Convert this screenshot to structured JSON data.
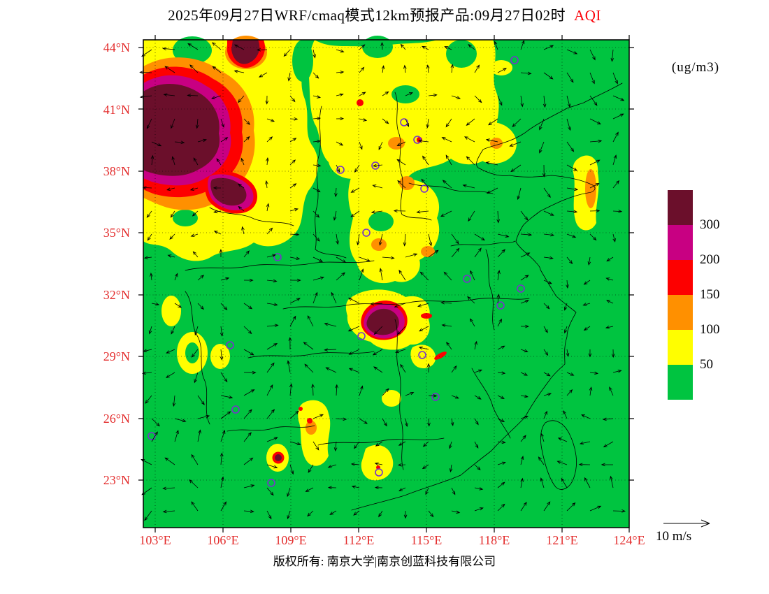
{
  "header": {
    "title_main": "2025年09月27日WRF/cmaq模式12km预报产品:09月27日02时",
    "title_highlight": "AQI"
  },
  "units_label": "(ug/m3)",
  "axes": {
    "lat_ticks": [
      "44°N",
      "41°N",
      "38°N",
      "35°N",
      "32°N",
      "29°N",
      "26°N",
      "23°N"
    ],
    "lon_ticks": [
      "103°E",
      "106°E",
      "109°E",
      "112°E",
      "115°E",
      "118°E",
      "121°E",
      "124°E"
    ]
  },
  "legend": {
    "tick_labels": [
      "300",
      "200",
      "150",
      "100",
      "50"
    ],
    "colors": [
      "#6b0f2b",
      "#c80082",
      "#fd0000",
      "#ff9000",
      "#fffe00",
      "#00c440"
    ]
  },
  "wind_scale": {
    "label": "10 m/s"
  },
  "footer": {
    "copyright": "版权所有: 南京大学|南京创蓝科技有限公司"
  },
  "chart_data": {
    "type": "heatmap",
    "title": "2025年09月27日WRF/cmaq模式12km预报产品:09月27日02时 AQI",
    "variable": "AQI",
    "units": "ug/m3",
    "x_axis": {
      "label": "longitude",
      "ticks": [
        "103°E",
        "106°E",
        "109°E",
        "112°E",
        "115°E",
        "118°E",
        "121°E",
        "124°E"
      ],
      "range_deg": [
        102.5,
        124
      ]
    },
    "y_axis": {
      "label": "latitude",
      "ticks": [
        "44°N",
        "41°N",
        "38°N",
        "35°N",
        "32°N",
        "29°N",
        "26°N",
        "23°N"
      ],
      "range_deg": [
        21.7,
        44.4
      ]
    },
    "color_bins": [
      {
        "range": "<50",
        "color": "#00c440"
      },
      {
        "range": "50-100",
        "color": "#fffe00"
      },
      {
        "range": "100-150",
        "color": "#ff9000"
      },
      {
        "range": "150-200",
        "color": "#fd0000"
      },
      {
        "range": "200-300",
        "color": "#c80082"
      },
      {
        "range": ">300",
        "color": "#6b0f2b"
      }
    ],
    "legend_ticks": [
      300,
      200,
      150,
      100,
      50
    ],
    "features": [
      {
        "area": "northwest corner (approx 103-108°E, 37-42.5°N)",
        "aqi": ">300 core with 150-300 ring and 50-150 fringe"
      },
      {
        "area": "north China / Huang-Huai plain (approx 106-119°E, 33-42°N)",
        "aqi": "50-100 widespread with scattered 100-200 spots"
      },
      {
        "area": "central hotspot band (approx 112-113.5°E, 30-31.5°N)",
        "aqi": "150 to >300 narrow elongated band"
      },
      {
        "area": "scattered southern patches (approx 108-116°E, 22-28°N)",
        "aqi": "50-100 with isolated 150->300 dots"
      },
      {
        "area": "east coastal strip (approx 122°E, 35-37.5°N)",
        "aqi": "50-150"
      },
      {
        "area": "remainder of domain including sea",
        "aqi": "<50"
      }
    ],
    "overlays": [
      "wind vectors, reference arrow 10 m/s",
      "province boundaries and coastline",
      "city markers (purple circles)",
      "dotted lat/lon gridlines every 3°"
    ]
  }
}
